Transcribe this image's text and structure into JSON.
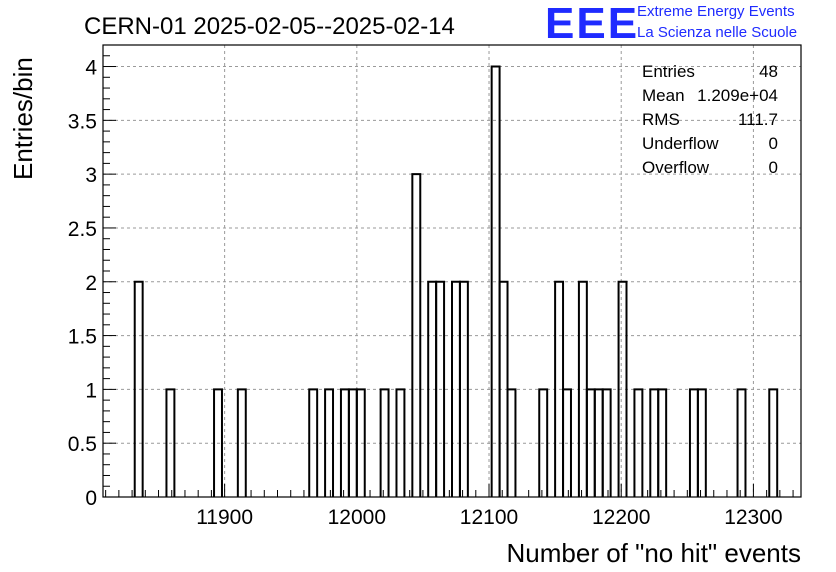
{
  "chart_data": {
    "type": "bar",
    "title": "CERN-01 2025-02-05--2025-02-14",
    "xlabel": "Number of \"no hit\" events",
    "ylabel": "Entries/bin",
    "xlim": [
      11808,
      12336
    ],
    "ylim": [
      0,
      4.2
    ],
    "bin_width": 6,
    "x_ticks": [
      11900,
      12000,
      12100,
      12200,
      12300
    ],
    "x_tick_labels": [
      "11900",
      "12000",
      "12100",
      "12200",
      "12300"
    ],
    "y_ticks": [
      0,
      0.5,
      1,
      1.5,
      2,
      2.5,
      3,
      3.5,
      4
    ],
    "y_tick_labels": [
      "0",
      "0.5",
      "1",
      "1.5",
      "2",
      "2.5",
      "3",
      "3.5",
      "4"
    ],
    "grid": true,
    "bins": [
      {
        "x": 11832,
        "value": 2
      },
      {
        "x": 11856,
        "value": 1
      },
      {
        "x": 11892,
        "value": 1
      },
      {
        "x": 11910,
        "value": 1
      },
      {
        "x": 11964,
        "value": 1
      },
      {
        "x": 11976,
        "value": 1
      },
      {
        "x": 11988,
        "value": 1
      },
      {
        "x": 11994,
        "value": 1
      },
      {
        "x": 12000,
        "value": 1
      },
      {
        "x": 12018,
        "value": 1
      },
      {
        "x": 12030,
        "value": 1
      },
      {
        "x": 12042,
        "value": 3
      },
      {
        "x": 12054,
        "value": 2
      },
      {
        "x": 12060,
        "value": 2
      },
      {
        "x": 12072,
        "value": 2
      },
      {
        "x": 12078,
        "value": 2
      },
      {
        "x": 12102,
        "value": 4
      },
      {
        "x": 12108,
        "value": 2
      },
      {
        "x": 12114,
        "value": 1
      },
      {
        "x": 12138,
        "value": 1
      },
      {
        "x": 12150,
        "value": 2
      },
      {
        "x": 12156,
        "value": 1
      },
      {
        "x": 12168,
        "value": 2
      },
      {
        "x": 12174,
        "value": 1
      },
      {
        "x": 12180,
        "value": 1
      },
      {
        "x": 12186,
        "value": 1
      },
      {
        "x": 12198,
        "value": 2
      },
      {
        "x": 12210,
        "value": 1
      },
      {
        "x": 12222,
        "value": 1
      },
      {
        "x": 12228,
        "value": 1
      },
      {
        "x": 12252,
        "value": 1
      },
      {
        "x": 12258,
        "value": 1
      },
      {
        "x": 12288,
        "value": 1
      },
      {
        "x": 12312,
        "value": 1
      }
    ],
    "stats": [
      {
        "label": "Entries",
        "value": "48"
      },
      {
        "label": "Mean",
        "value": "1.209e+04"
      },
      {
        "label": "RMS",
        "value": "111.7"
      },
      {
        "label": "Underflow",
        "value": "0"
      },
      {
        "label": "Overflow",
        "value": "0"
      }
    ],
    "colors": {
      "line": "#000000",
      "grid": "#9a9a9a",
      "logo": "#1f2bff"
    }
  },
  "logo": {
    "letters": "EEE",
    "line1": "Extreme Energy Events",
    "line2": "La Scienza nelle Scuole"
  }
}
